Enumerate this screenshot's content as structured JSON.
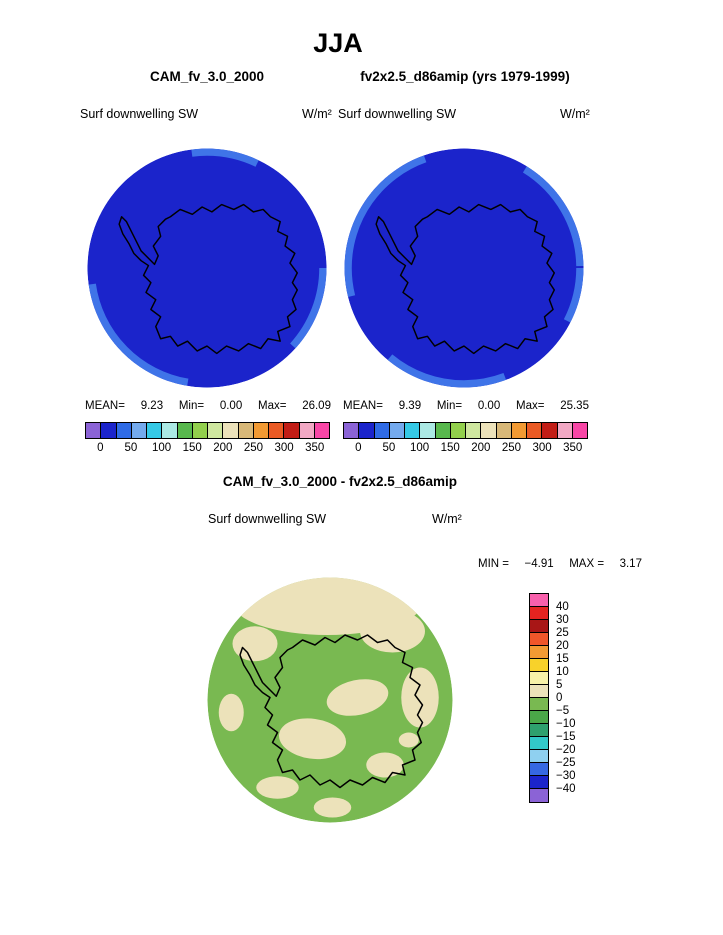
{
  "title": "JJA",
  "panels": {
    "left": {
      "model": "CAM_fv_3.0_2000",
      "field": "Surf downwelling SW",
      "units": "W/m²",
      "stats": {
        "mean_label": "MEAN=",
        "mean": "9.23",
        "min_label": "Min=",
        "min": "0.00",
        "max_label": "Max=",
        "max": "26.09"
      }
    },
    "right": {
      "model": "fv2x2.5_d86amip (yrs 1979-1999)",
      "field": "Surf downwelling SW",
      "units": "W/m²",
      "stats": {
        "mean_label": "MEAN=",
        "mean": "9.39",
        "min_label": "Min=",
        "min": "0.00",
        "max_label": "Max=",
        "max": "25.35"
      }
    },
    "diff": {
      "title": "CAM_fv_3.0_2000 - fv2x2.5_d86amip",
      "field": "Surf downwelling SW",
      "units": "W/m²",
      "min_label": "MIN =",
      "min": "−4.91",
      "max_label": "MAX =",
      "max": "3.17"
    }
  },
  "colorbars": {
    "sw_ticks": [
      "0",
      "50",
      "100",
      "150",
      "200",
      "250",
      "300",
      "350"
    ],
    "sw_colors": [
      "#8b63d6",
      "#1b24cb",
      "#2f6be6",
      "#74aaee",
      "#35c9e6",
      "#abe9e4",
      "#58b84d",
      "#92d04c",
      "#cfe79f",
      "#ece2ba",
      "#d8b878",
      "#f29a33",
      "#ea5a24",
      "#c21d16",
      "#f2a8c4",
      "#f846a6"
    ],
    "diff_ticks": [
      "40",
      "30",
      "25",
      "20",
      "15",
      "10",
      "5",
      "0",
      "−5",
      "−10",
      "−15",
      "−20",
      "−25",
      "−30",
      "−40"
    ],
    "diff_colors": [
      "#f860ac",
      "#e42320",
      "#a81616",
      "#f0562a",
      "#f29a33",
      "#f8d22a",
      "#f8f2a8",
      "#ece2ba",
      "#79b951",
      "#4aa748",
      "#2ea06e",
      "#32c8c8",
      "#8fd0f0",
      "#3668e2",
      "#1b24cb",
      "#8b63d6"
    ]
  },
  "map_colors": {
    "sw_base": "#1b24cb",
    "sw_rim": "#3f74e8",
    "diff_base": "#79b951",
    "diff_patch": "#ece2ba",
    "coastline": "#000000"
  },
  "chart_data": [
    {
      "type": "heatmap",
      "map_projection": "south polar stereographic",
      "season": "JJA",
      "model": "CAM_fv_3.0_2000",
      "variable": "Surf downwelling SW",
      "units": "W/m²",
      "mean": 9.23,
      "min": 0.0,
      "max": 26.09,
      "colorbar_ticks": [
        0,
        50,
        100,
        150,
        200,
        250,
        300,
        350
      ],
      "note": "field nearly uniform dark blue (0-25 W/m² bin) over Antarctic polar cap; slightly higher band at map rim"
    },
    {
      "type": "heatmap",
      "map_projection": "south polar stereographic",
      "season": "JJA",
      "model": "fv2x2.5_d86amip (yrs 1979-1999)",
      "variable": "Surf downwelling SW",
      "units": "W/m²",
      "mean": 9.39,
      "min": 0.0,
      "max": 25.35,
      "colorbar_ticks": [
        0,
        50,
        100,
        150,
        200,
        250,
        300,
        350
      ],
      "note": "field nearly uniform dark blue (0-25 W/m² bin) over Antarctic polar cap; slightly higher band at map rim"
    },
    {
      "type": "heatmap",
      "map_projection": "south polar stereographic",
      "season": "JJA",
      "model": "CAM_fv_3.0_2000 - fv2x2.5_d86amip",
      "variable": "Surf downwelling SW",
      "units": "W/m²",
      "min": -4.91,
      "max": 3.17,
      "colorbar_ticks": [
        40,
        30,
        25,
        20,
        15,
        10,
        5,
        0,
        -5,
        -10,
        -15,
        -20,
        -25,
        -30,
        -40
      ],
      "note": "difference map shows only two bins: green (−5..0) and cream (0..5) patches"
    }
  ]
}
